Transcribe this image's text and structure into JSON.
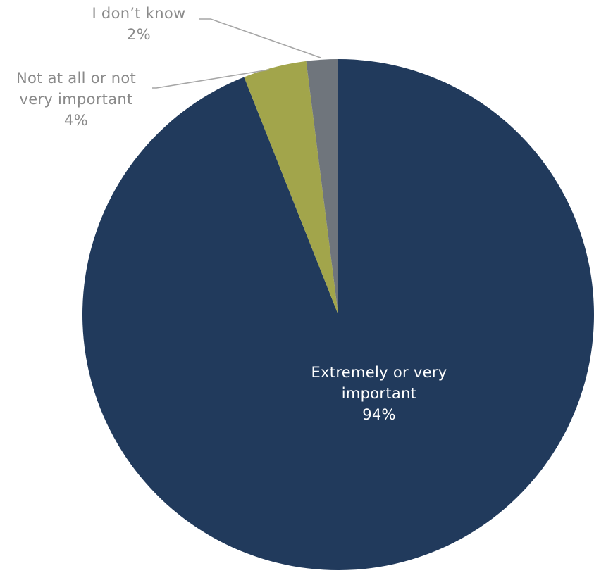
{
  "chart_data": {
    "type": "pie",
    "start_position": "12 o'clock",
    "direction": "clockwise",
    "legend": "none",
    "slices": [
      {
        "label_lines": [
          "Extremely or very",
          "important"
        ],
        "value": 94,
        "value_label": "94%",
        "color": "#213A5C",
        "label_color": "#FFFFFF",
        "label_placement": "inside"
      },
      {
        "label_lines": [
          "Not at all or not",
          "very important"
        ],
        "value": 4,
        "value_label": "4%",
        "color": "#A2A54B",
        "label_color": "#8A8A8A",
        "label_placement": "outside-leader"
      },
      {
        "label_lines": [
          "I don’t know"
        ],
        "value": 2,
        "value_label": "2%",
        "color": "#6F757C",
        "label_color": "#8A8A8A",
        "label_placement": "outside-leader"
      }
    ]
  }
}
